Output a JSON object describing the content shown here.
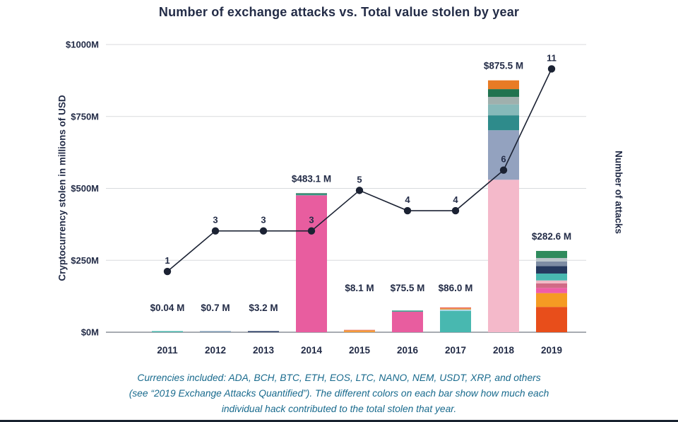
{
  "title": "Number of exchange attacks vs. Total value stolen by year",
  "caption": {
    "lines": [
      "Currencies included: ADA, BCH, BTC, ETH, EOS, LTC, NANO, NEM, USDT, XRP, and others",
      "(see “2019 Exchange Attacks Quantified”). The different colors on each bar show how much each",
      "individual hack contributed to the total stolen that year."
    ]
  },
  "chart_data": {
    "type": "combo-bar-line",
    "title": "Number of exchange attacks vs. Total value stolen by year",
    "categories": [
      "2011",
      "2012",
      "2013",
      "2014",
      "2015",
      "2016",
      "2017",
      "2018",
      "2019"
    ],
    "y_left": {
      "label": "Cryptocurrency stolen in millions of USD",
      "tick_labels": [
        "$0M",
        "$250M",
        "$500M",
        "$750M",
        "$1000M"
      ],
      "tick_values": [
        0,
        250,
        500,
        750,
        1000
      ],
      "max": 1000,
      "grid": true
    },
    "y_right": {
      "label": "Number of attacks"
    },
    "bars": {
      "name": "Total value stolen (millions of USD)",
      "totals": [
        0.04,
        0.7,
        3.2,
        483.1,
        8.1,
        75.5,
        86.0,
        875.5,
        282.6
      ],
      "labels": [
        "$0.04 M",
        "$0.7 M",
        "$3.2 M",
        "$483.1 M",
        "$8.1 M",
        "$75.5 M",
        "$86.0 M",
        "$875.5 M",
        "$282.6 M"
      ],
      "segments": [
        [
          {
            "value": 0.04,
            "color": "#4db6ac"
          }
        ],
        [
          {
            "value": 0.7,
            "color": "#7f9bb3"
          }
        ],
        [
          {
            "value": 3.2,
            "color": "#2c3e66"
          }
        ],
        [
          {
            "value": 476.0,
            "color": "#e85d9f"
          },
          {
            "value": 4.0,
            "color": "#35a08c"
          },
          {
            "value": 3.1,
            "color": "#1e6b4e"
          }
        ],
        [
          {
            "value": 6.5,
            "color": "#f39c3d"
          },
          {
            "value": 1.6,
            "color": "#e2574c"
          }
        ],
        [
          {
            "value": 71.5,
            "color": "#e85d9f"
          },
          {
            "value": 4.0,
            "color": "#35a08c"
          }
        ],
        [
          {
            "value": 74.0,
            "color": "#48b8b0"
          },
          {
            "value": 5.0,
            "color": "#a8d5e2"
          },
          {
            "value": 4.0,
            "color": "#f39c3d"
          },
          {
            "value": 3.0,
            "color": "#e2574c"
          }
        ],
        [
          {
            "value": 530.0,
            "color": "#f4b9ca"
          },
          {
            "value": 172.0,
            "color": "#93a2bf"
          },
          {
            "value": 52.0,
            "color": "#2e8b8b"
          },
          {
            "value": 38.0,
            "color": "#86b9b9"
          },
          {
            "value": 26.0,
            "color": "#9fb0ad"
          },
          {
            "value": 27.0,
            "color": "#21734f"
          },
          {
            "value": 30.5,
            "color": "#e87b25"
          }
        ],
        [
          {
            "value": 88.0,
            "color": "#e84e1b"
          },
          {
            "value": 48.0,
            "color": "#f59b23"
          },
          {
            "value": 18.0,
            "color": "#ef5da8"
          },
          {
            "value": 16.0,
            "color": "#d16a86"
          },
          {
            "value": 10.0,
            "color": "#f2b8c6"
          },
          {
            "value": 24.0,
            "color": "#48b8b0"
          },
          {
            "value": 26.0,
            "color": "#25395e"
          },
          {
            "value": 16.0,
            "color": "#7d8ca3"
          },
          {
            "value": 12.0,
            "color": "#b9c4c9"
          },
          {
            "value": 24.6,
            "color": "#2f8b5d"
          }
        ]
      ]
    },
    "line": {
      "name": "Number of attacks",
      "values": [
        1,
        3,
        3,
        3,
        5,
        4,
        4,
        6,
        11
      ],
      "labels": [
        "1",
        "3",
        "3",
        "3",
        "5",
        "4",
        "4",
        "6",
        "11"
      ],
      "color": "#1b2233"
    },
    "colors": {
      "grid": "#d8dadd",
      "baseline": "#8a8f98",
      "text": "#232c47",
      "caption_text": "#186a8d"
    }
  }
}
